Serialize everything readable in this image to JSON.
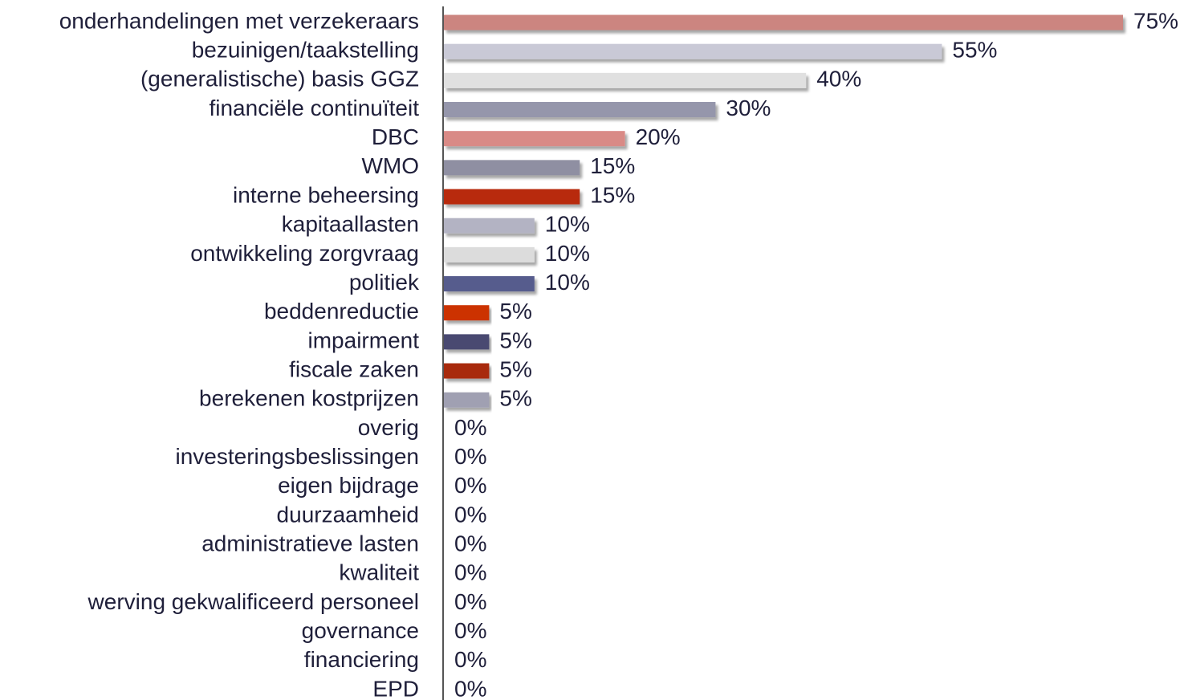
{
  "chart_data": {
    "type": "barh",
    "categories": [
      "onderhandelingen met verzekeraars",
      "bezuinigen/taakstelling",
      "(generalistische) basis GGZ",
      "financiële continuïteit",
      "DBC",
      "WMO",
      "interne beheersing",
      "kapitaallasten",
      "ontwikkeling zorgvraag",
      "politiek",
      "beddenreductie",
      "impairment",
      "fiscale zaken",
      "berekenen kostprijzen",
      "overig",
      "investeringsbeslissingen",
      "eigen bijdrage",
      "duurzaamheid",
      "administratieve lasten",
      "kwaliteit",
      "werving gekwalificeerd personeel",
      "governance",
      "financiering",
      "EPD"
    ],
    "values": [
      75,
      55,
      40,
      30,
      20,
      15,
      15,
      10,
      10,
      10,
      5,
      5,
      5,
      5,
      0,
      0,
      0,
      0,
      0,
      0,
      0,
      0,
      0,
      0
    ],
    "value_labels": [
      "75%",
      "55%",
      "40%",
      "30%",
      "20%",
      "15%",
      "15%",
      "10%",
      "10%",
      "10%",
      "5%",
      "5%",
      "5%",
      "5%",
      "0%",
      "0%",
      "0%",
      "0%",
      "0%",
      "0%",
      "0%",
      "0%",
      "0%",
      "0%"
    ],
    "colors": [
      "#cc8580",
      "#c9c9d6",
      "#e0e0e0",
      "#9596ab",
      "#d98a86",
      "#8f8fa2",
      "#b82b0b",
      "#b3b3c3",
      "#dcdcdc",
      "#575b8d",
      "#cc3300",
      "#4a4a71",
      "#a82c10",
      "#a0a0b2",
      "#a0a0b2",
      "#a0a0b2",
      "#a0a0b2",
      "#a0a0b2",
      "#a0a0b2",
      "#a0a0b2",
      "#a0a0b2",
      "#a0a0b2",
      "#a0a0b2",
      "#a0a0b2"
    ]
  }
}
